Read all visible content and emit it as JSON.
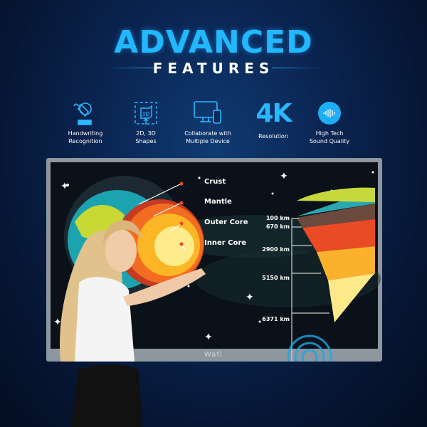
{
  "header": {
    "title": "ADVANCED",
    "subtitle": "FEATURES"
  },
  "features": [
    {
      "icon": "pen-tablet-icon",
      "label": "Handwriting\nRecognition"
    },
    {
      "icon": "3d-cube-icon",
      "label": "2D, 3D\nShapes"
    },
    {
      "icon": "monitor-phone-icon",
      "label": "Collaborate with\nMultiple Device"
    },
    {
      "icon": "4k-icon",
      "icon_text": "4K",
      "label": "Resolution"
    },
    {
      "icon": "sound-wave-icon",
      "label": "High Tech\nSound Quality"
    }
  ],
  "display": {
    "brand": "Wafi",
    "layers": [
      "Crust",
      "Mantle",
      "Outer Core",
      "Inner Core"
    ],
    "depths": [
      "100 km",
      "670 km",
      "2900 km",
      "5150 km",
      "6371 km"
    ]
  },
  "colors": {
    "accent": "#21b8ff",
    "background": "#0a2450",
    "screen": "#0b1118"
  }
}
